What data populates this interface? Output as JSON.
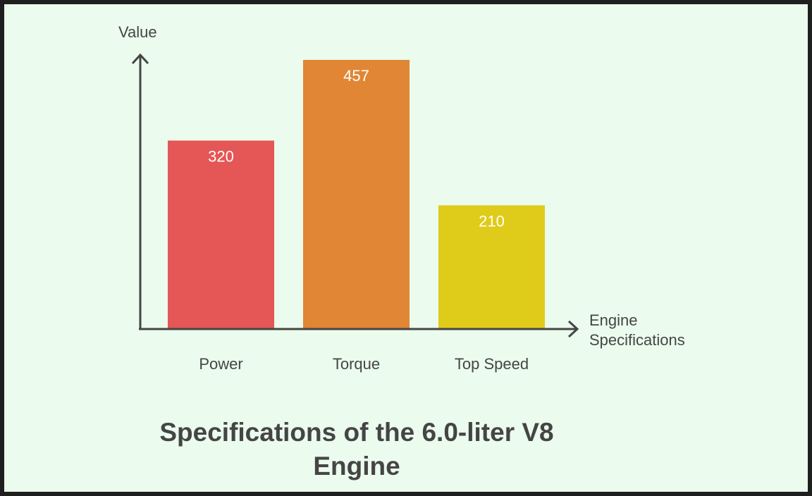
{
  "chart_data": {
    "type": "bar",
    "title": "Specifications of the 6.0-liter V8 Engine",
    "ylabel": "Value",
    "xlabel": "Engine Specifications",
    "categories": [
      "Power",
      "Torque",
      "Top Speed"
    ],
    "values": [
      320,
      457,
      210
    ],
    "colors": [
      "#e55656",
      "#e08634",
      "#dfcb19"
    ],
    "label_color": "#ffffff",
    "axis_color": "#454545",
    "ylim": [
      0,
      457
    ],
    "grid": false,
    "legend": "none"
  }
}
